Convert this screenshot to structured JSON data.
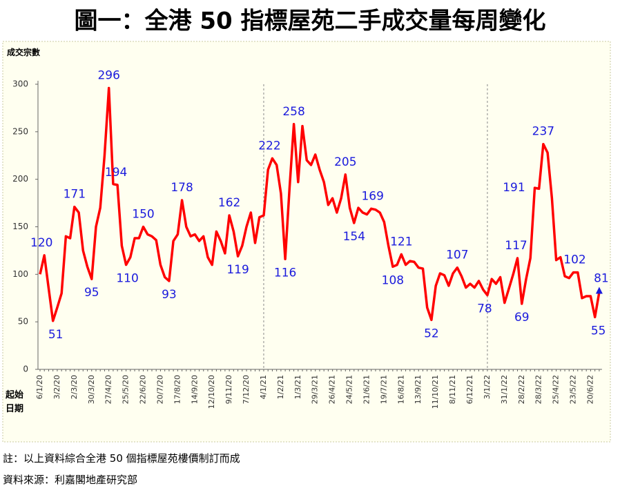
{
  "chart_data": {
    "type": "line",
    "title": "圖一：全港 50 指標屋苑二手成交量每周變化",
    "y_label": "成交宗數",
    "x_label": [
      "起始",
      "日期"
    ],
    "notes": [
      "註：以上資料綜合全港 50 個指標屋苑樓價制訂而成",
      "資料來源：利嘉閣地產研究部"
    ],
    "categories": [
      "6/1/20",
      null,
      null,
      null,
      "3/2/20",
      null,
      null,
      null,
      "2/3/20",
      null,
      null,
      null,
      "30/3/20",
      null,
      null,
      null,
      "27/4/20",
      null,
      null,
      null,
      "25/5/20",
      null,
      null,
      null,
      "22/6/20",
      null,
      null,
      null,
      "20/7/20",
      null,
      null,
      null,
      "17/8/20",
      null,
      null,
      null,
      "14/9/20",
      null,
      null,
      null,
      "12/10/20",
      null,
      null,
      null,
      "9/11/20",
      null,
      null,
      null,
      "7/12/20",
      null,
      null,
      null,
      "4/1/21",
      null,
      null,
      null,
      "1/2/21",
      null,
      null,
      null,
      "1/3/21",
      null,
      null,
      null,
      "29/3/21",
      null,
      null,
      null,
      "26/4/21",
      null,
      null,
      null,
      "24/5/21",
      null,
      null,
      null,
      "21/6/21",
      null,
      null,
      null,
      "19/7/21",
      null,
      null,
      null,
      "16/8/21",
      null,
      null,
      null,
      "13/9/21",
      null,
      null,
      null,
      "11/10/21",
      null,
      null,
      null,
      "8/11/21",
      null,
      null,
      null,
      "6/12/21",
      null,
      null,
      null,
      "3/1/22",
      null,
      null,
      null,
      "31/1/22",
      null,
      null,
      null,
      "28/2/22",
      null,
      null,
      null,
      "28/3/22",
      null,
      null,
      null,
      "25/4/22",
      null,
      null,
      null,
      "23/5/22",
      null,
      null,
      null,
      "20/6/22",
      null,
      null
    ],
    "series": [
      {
        "color": "#ff0000",
        "label_color": "#1a1adc",
        "values": [
          100,
          120,
          85,
          51,
          65,
          80,
          140,
          138,
          171,
          165,
          125,
          108,
          95,
          150,
          170,
          225,
          296,
          195,
          194,
          130,
          110,
          118,
          138,
          138,
          150,
          142,
          140,
          136,
          110,
          97,
          93,
          135,
          142,
          178,
          150,
          140,
          142,
          135,
          140,
          118,
          110,
          145,
          135,
          122,
          162,
          145,
          119,
          130,
          150,
          165,
          133,
          160,
          162,
          210,
          222,
          215,
          185,
          116,
          190,
          258,
          197,
          256,
          220,
          215,
          226,
          210,
          197,
          173,
          180,
          165,
          180,
          205,
          170,
          154,
          170,
          165,
          163,
          169,
          168,
          165,
          155,
          130,
          108,
          110,
          121,
          110,
          114,
          113,
          107,
          106,
          65,
          52,
          88,
          101,
          99,
          88,
          101,
          107,
          98,
          86,
          90,
          86,
          93,
          84,
          78,
          95,
          90,
          97,
          70,
          85,
          100,
          117,
          69,
          95,
          117,
          191,
          190,
          237,
          228,
          180,
          115,
          118,
          98,
          96,
          102,
          102,
          75,
          77,
          77,
          55,
          81
        ]
      }
    ],
    "ylim": [
      0,
      300
    ],
    "yticks": [
      0,
      50,
      100,
      150,
      200,
      250,
      300
    ],
    "grid": false
  }
}
